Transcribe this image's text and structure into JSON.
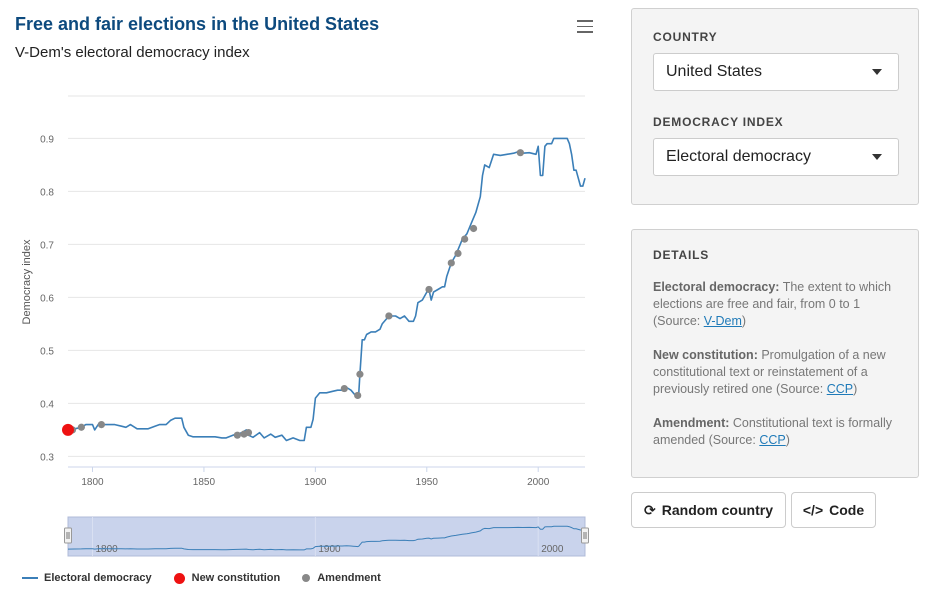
{
  "chart": {
    "title": "Free and fair elections in the United States",
    "subtitle": "V-Dem's electoral democracy index",
    "menu_icon": "hamburger-menu-icon"
  },
  "chart_data": {
    "type": "line",
    "title": "Free and fair elections in the United States",
    "subtitle": "V-Dem's electoral democracy index",
    "ylabel": "Democracy index",
    "xlabel": "",
    "xlim": [
      1789,
      2021
    ],
    "ylim": [
      0.28,
      0.98
    ],
    "x_ticks": [
      1800,
      1850,
      1900,
      1950,
      2000
    ],
    "y_ticks": [
      0.3,
      0.4,
      0.5,
      0.6,
      0.7,
      0.8,
      0.9
    ],
    "grid": true,
    "legend_position": "bottom",
    "navigator_ticks": [
      1800,
      1900,
      2000
    ],
    "series": [
      {
        "name": "Electoral democracy",
        "color": "#3b7fb8",
        "points": [
          [
            1789,
            0.35
          ],
          [
            1792,
            0.352
          ],
          [
            1795,
            0.355
          ],
          [
            1797,
            0.36
          ],
          [
            1800,
            0.36
          ],
          [
            1801,
            0.35
          ],
          [
            1803,
            0.363
          ],
          [
            1805,
            0.36
          ],
          [
            1810,
            0.36
          ],
          [
            1813,
            0.357
          ],
          [
            1815,
            0.355
          ],
          [
            1817,
            0.36
          ],
          [
            1820,
            0.352
          ],
          [
            1825,
            0.352
          ],
          [
            1828,
            0.357
          ],
          [
            1830,
            0.36
          ],
          [
            1833,
            0.36
          ],
          [
            1835,
            0.368
          ],
          [
            1837,
            0.372
          ],
          [
            1840,
            0.372
          ],
          [
            1841,
            0.355
          ],
          [
            1843,
            0.34
          ],
          [
            1845,
            0.337
          ],
          [
            1850,
            0.337
          ],
          [
            1855,
            0.337
          ],
          [
            1858,
            0.335
          ],
          [
            1860,
            0.335
          ],
          [
            1863,
            0.34
          ],
          [
            1865,
            0.342
          ],
          [
            1867,
            0.345
          ],
          [
            1869,
            0.35
          ],
          [
            1870,
            0.34
          ],
          [
            1872,
            0.336
          ],
          [
            1875,
            0.345
          ],
          [
            1877,
            0.335
          ],
          [
            1880,
            0.342
          ],
          [
            1882,
            0.336
          ],
          [
            1885,
            0.34
          ],
          [
            1887,
            0.33
          ],
          [
            1890,
            0.335
          ],
          [
            1893,
            0.33
          ],
          [
            1895,
            0.33
          ],
          [
            1896,
            0.355
          ],
          [
            1898,
            0.355
          ],
          [
            1899,
            0.37
          ],
          [
            1900,
            0.41
          ],
          [
            1902,
            0.42
          ],
          [
            1905,
            0.42
          ],
          [
            1908,
            0.423
          ],
          [
            1910,
            0.425
          ],
          [
            1912,
            0.425
          ],
          [
            1914,
            0.43
          ],
          [
            1916,
            0.425
          ],
          [
            1917,
            0.42
          ],
          [
            1918,
            0.415
          ],
          [
            1919,
            0.41
          ],
          [
            1919.5,
            0.42
          ],
          [
            1920,
            0.455
          ],
          [
            1921,
            0.52
          ],
          [
            1922,
            0.52
          ],
          [
            1923,
            0.53
          ],
          [
            1925,
            0.535
          ],
          [
            1927,
            0.535
          ],
          [
            1929,
            0.54
          ],
          [
            1930,
            0.55
          ],
          [
            1932,
            0.56
          ],
          [
            1933,
            0.565
          ],
          [
            1936,
            0.565
          ],
          [
            1938,
            0.56
          ],
          [
            1940,
            0.565
          ],
          [
            1942,
            0.555
          ],
          [
            1944,
            0.555
          ],
          [
            1945,
            0.565
          ],
          [
            1946,
            0.59
          ],
          [
            1948,
            0.595
          ],
          [
            1950,
            0.61
          ],
          [
            1951,
            0.615
          ],
          [
            1952,
            0.595
          ],
          [
            1953,
            0.61
          ],
          [
            1955,
            0.615
          ],
          [
            1957,
            0.62
          ],
          [
            1958,
            0.62
          ],
          [
            1959,
            0.64
          ],
          [
            1961,
            0.665
          ],
          [
            1963,
            0.68
          ],
          [
            1965,
            0.7
          ],
          [
            1966,
            0.71
          ],
          [
            1968,
            0.72
          ],
          [
            1969,
            0.73
          ],
          [
            1970,
            0.74
          ],
          [
            1972,
            0.76
          ],
          [
            1974,
            0.79
          ],
          [
            1975,
            0.83
          ],
          [
            1976,
            0.85
          ],
          [
            1978,
            0.845
          ],
          [
            1980,
            0.87
          ],
          [
            1983,
            0.868
          ],
          [
            1986,
            0.87
          ],
          [
            1989,
            0.872
          ],
          [
            1991,
            0.875
          ],
          [
            1993,
            0.872
          ],
          [
            1996,
            0.873
          ],
          [
            1999,
            0.87
          ],
          [
            2000,
            0.885
          ],
          [
            2001,
            0.83
          ],
          [
            2002,
            0.83
          ],
          [
            2003,
            0.885
          ],
          [
            2004,
            0.89
          ],
          [
            2006,
            0.89
          ],
          [
            2007,
            0.9
          ],
          [
            2008,
            0.9
          ],
          [
            2010,
            0.9
          ],
          [
            2011,
            0.9
          ],
          [
            2012,
            0.9
          ],
          [
            2013,
            0.9
          ],
          [
            2014,
            0.89
          ],
          [
            2015,
            0.87
          ],
          [
            2016,
            0.84
          ],
          [
            2017,
            0.84
          ],
          [
            2018,
            0.825
          ],
          [
            2019,
            0.81
          ],
          [
            2020,
            0.81
          ],
          [
            2021,
            0.825
          ]
        ]
      },
      {
        "name": "New constitution",
        "color": "#ee1111",
        "points": [
          [
            1789,
            0.35
          ]
        ]
      },
      {
        "name": "Amendment",
        "color": "#888888",
        "points": [
          [
            1791,
            0.35
          ],
          [
            1795,
            0.355
          ],
          [
            1804,
            0.36
          ],
          [
            1865,
            0.34
          ],
          [
            1868,
            0.342
          ],
          [
            1870,
            0.345
          ],
          [
            1913,
            0.428
          ],
          [
            1919,
            0.415
          ],
          [
            1920,
            0.455
          ],
          [
            1933,
            0.565
          ],
          [
            1951,
            0.615
          ],
          [
            1961,
            0.665
          ],
          [
            1964,
            0.683
          ],
          [
            1967,
            0.71
          ],
          [
            1971,
            0.73
          ],
          [
            1992,
            0.873
          ]
        ]
      }
    ]
  },
  "legend": {
    "items": [
      {
        "label": "Electoral democracy",
        "color": "#3b7fb8",
        "shape": "line"
      },
      {
        "label": "New constitution",
        "color": "#ee1111",
        "shape": "dot"
      },
      {
        "label": "Amendment",
        "color": "#888888",
        "shape": "dot"
      }
    ]
  },
  "controls": {
    "country_label": "COUNTRY",
    "country_value": "United States",
    "index_label": "DEMOCRACY INDEX",
    "index_value": "Electoral democracy"
  },
  "details": {
    "heading": "DETAILS",
    "electoral_term": "Electoral democracy:",
    "electoral_text": " The extent to which elections are free and fair, from 0 to 1 (Source: ",
    "electoral_link": "V-Dem",
    "electoral_close": ")",
    "constitution_term": "New constitution:",
    "constitution_text": " Promulgation of a new constitutional text or reinstatement of a previously retired one (Source: ",
    "constitution_link": "CCP",
    "constitution_close": ")",
    "amendment_term": "Amendment:",
    "amendment_text": " Constitutional text is formally amended (Source: ",
    "amendment_link": "CCP",
    "amendment_close": ")"
  },
  "buttons": {
    "random_label": "Random country",
    "random_icon": "refresh-icon",
    "code_label": "Code",
    "code_icon": "code-icon"
  }
}
